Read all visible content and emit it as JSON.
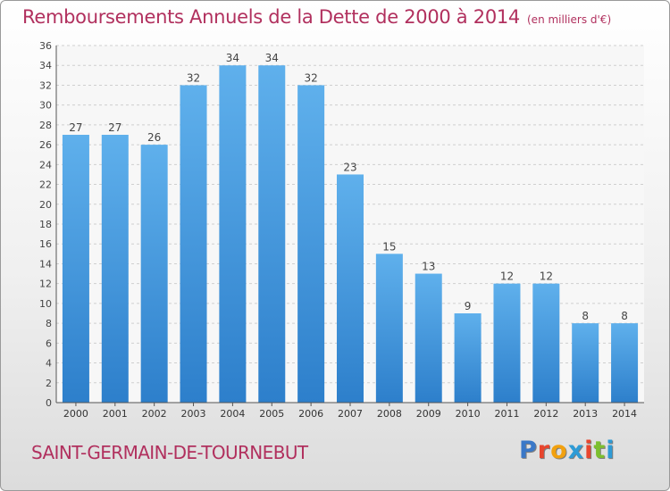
{
  "chart_data": {
    "type": "bar",
    "title": "Remboursements Annuels de la Dette de 2000 à 2014",
    "unit_note": "(en milliers d'€)",
    "categories": [
      "2000",
      "2001",
      "2002",
      "2003",
      "2004",
      "2005",
      "2006",
      "2007",
      "2008",
      "2009",
      "2010",
      "2011",
      "2012",
      "2013",
      "2014"
    ],
    "values": [
      27,
      27,
      26,
      32,
      34,
      34,
      32,
      23,
      15,
      13,
      9,
      12,
      12,
      8,
      8
    ],
    "ylim": [
      0,
      36
    ],
    "yticks": [
      0,
      2,
      4,
      6,
      8,
      10,
      12,
      14,
      16,
      18,
      20,
      22,
      24,
      26,
      28,
      30,
      32,
      34,
      36
    ],
    "grid": true,
    "bar_color_top": "#5fb0ec",
    "bar_color_bottom": "#2d7fcb"
  },
  "footer": {
    "commune": "SAINT-GERMAIN-DE-TOURNEBUT",
    "logo_letters": [
      "P",
      "r",
      "o",
      "x",
      "i",
      "t",
      "i"
    ],
    "logo_colors": [
      "#3a78c8",
      "#e8452d",
      "#f2a10f",
      "#2e9bd6",
      "#e8452d",
      "#7cbf2f",
      "#2e9bd6"
    ]
  }
}
